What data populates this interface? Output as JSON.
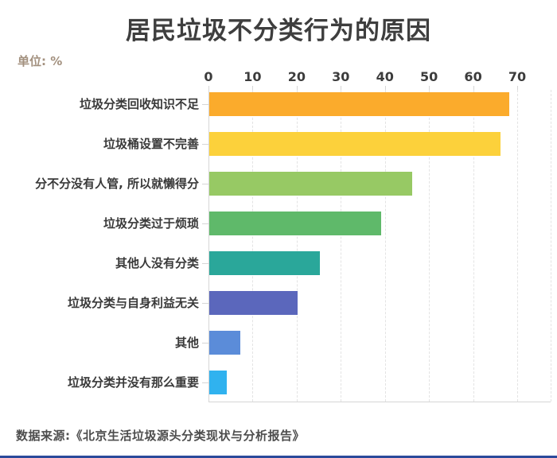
{
  "title": "居民垃圾不分类行为的原因",
  "unit_label": "单位: %",
  "source": "数据来源:《北京生活垃圾源头分类现状与分析报告》",
  "colors": {
    "title_text": "#3e3e3e",
    "unit_text": "#a3917f",
    "axis_text": "#3c3c3c",
    "source_text": "#4d4d4d",
    "gridline": "#e3e3e3",
    "axis_line": "#d6d6d6",
    "bottom_rule": "#2b4a9b"
  },
  "chart_data": {
    "type": "bar",
    "orientation": "horizontal",
    "title": "居民垃圾不分类行为的原因",
    "unit": "%",
    "xlabel": "",
    "ylabel": "",
    "axis_position": "top",
    "grid": "dashed-vertical",
    "xlim": [
      0,
      70
    ],
    "x_ticks": [
      0,
      10,
      20,
      30,
      40,
      50,
      60,
      70
    ],
    "categories": [
      "垃圾分类回收知识不足",
      "垃圾桶设置不完善",
      "分不分没有人管, 所以就懒得分",
      "垃圾分类过于烦琐",
      "其他人没有分类",
      "垃圾分类与自身利益无关",
      "其他",
      "垃圾分类并没有那么重要"
    ],
    "values": [
      68,
      66,
      46,
      39,
      25,
      20,
      7,
      4
    ],
    "bar_colors": [
      "#fbab2c",
      "#fcd13b",
      "#97c964",
      "#5fb96a",
      "#2aa79a",
      "#5b67bc",
      "#5b8cd9",
      "#30b2ef"
    ]
  }
}
